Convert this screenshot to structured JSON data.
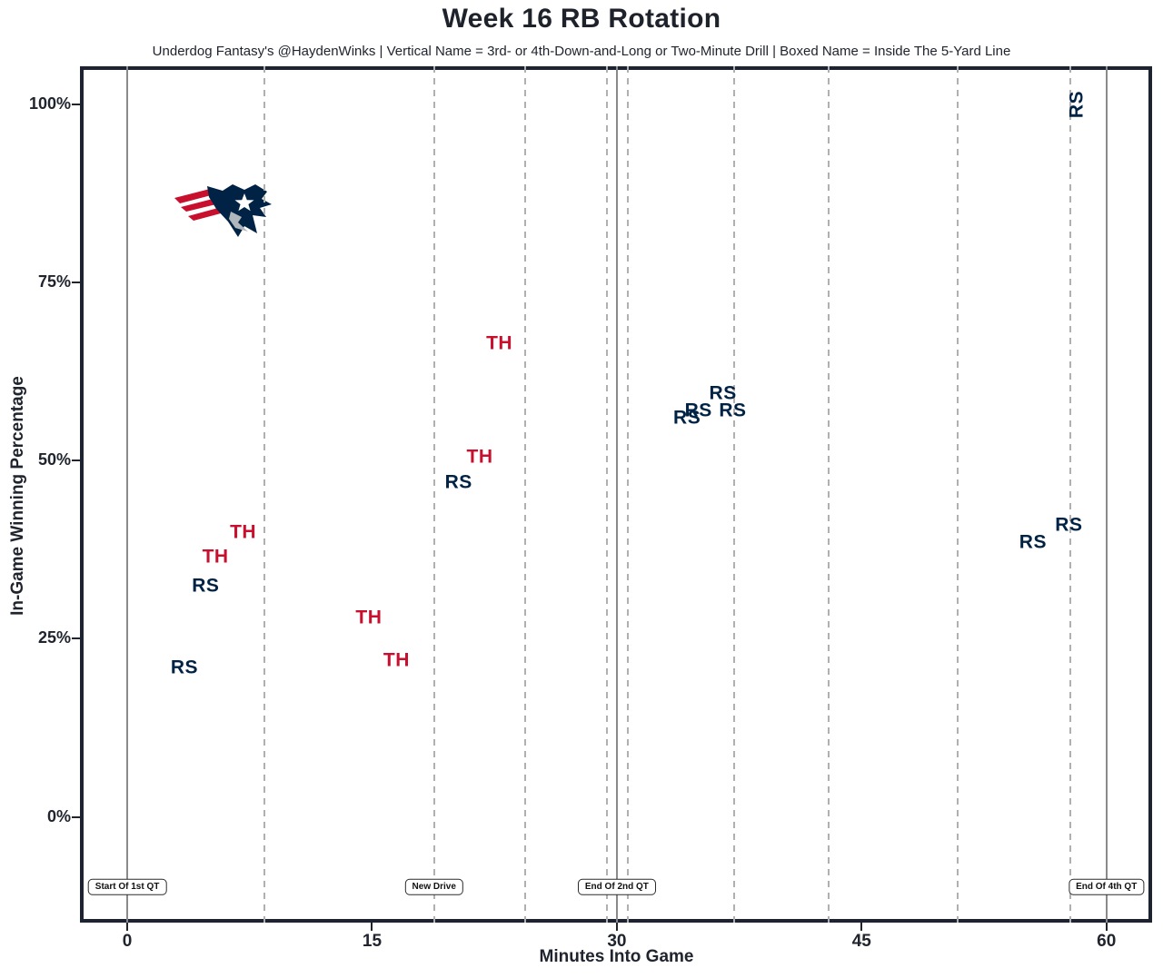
{
  "title": "Week 16 RB Rotation",
  "subtitle": "Underdog Fantasy's @HaydenWinks | Vertical Name = 3rd- or 4th-Down-and-Long or Two-Minute Drill | Boxed Name = Inside The 5-Yard Line",
  "team": {
    "logo": "new-england-patriots-logo",
    "colors": {
      "navy": "#002244",
      "red": "#C8102E",
      "silver": "#B0B7BC"
    }
  },
  "chart_data": {
    "type": "scatter",
    "title": "Week 16 RB Rotation",
    "subtitle": "Underdog Fantasy's @HaydenWinks | Vertical Name = 3rd- or 4th-Down-and-Long or Two-Minute Drill | Boxed Name = Inside The 5-Yard Line",
    "xlabel": "Minutes Into Game",
    "ylabel": "In-Game Winning Percentage",
    "xlim": [
      -2.9,
      62.8
    ],
    "ylim": [
      -14.8,
      105.3
    ],
    "x_ticks": [
      0,
      15,
      30,
      45,
      60
    ],
    "y_ticks": [
      100,
      75,
      50,
      25,
      0
    ],
    "y_tick_suffix": "%",
    "grid": "vertical-only",
    "legend": "none",
    "marker_style": "text-labels",
    "series": [
      {
        "name": "RS",
        "color": "#002244",
        "points": [
          {
            "x": 3.5,
            "y": 21
          },
          {
            "x": 4.8,
            "y": 32.5
          },
          {
            "x": 20.3,
            "y": 47
          },
          {
            "x": 34.3,
            "y": 56
          },
          {
            "x": 35.0,
            "y": 57
          },
          {
            "x": 36.5,
            "y": 59.5
          },
          {
            "x": 37.1,
            "y": 57
          },
          {
            "x": 55.5,
            "y": 38.5
          },
          {
            "x": 57.7,
            "y": 41
          },
          {
            "x": 58.2,
            "y": 100,
            "vertical": true
          }
        ]
      },
      {
        "name": "TH",
        "color": "#C8102E",
        "points": [
          {
            "x": 5.4,
            "y": 36.5
          },
          {
            "x": 7.1,
            "y": 40
          },
          {
            "x": 14.8,
            "y": 28
          },
          {
            "x": 16.5,
            "y": 22
          },
          {
            "x": 21.6,
            "y": 50.5
          },
          {
            "x": 22.8,
            "y": 66.5
          }
        ]
      }
    ],
    "vlines_solid": [
      0,
      30,
      60
    ],
    "vlines_dashed": [
      8.4,
      18.8,
      24.4,
      29.4,
      30.7,
      37.2,
      43.0,
      50.9,
      57.8
    ],
    "annotations": [
      {
        "label": "Start Of 1st QT",
        "x": 0
      },
      {
        "label": "New Drive",
        "x": 18.8
      },
      {
        "label": "End Of 2nd QT",
        "x": 30
      },
      {
        "label": "End Of 4th QT",
        "x": 60
      }
    ],
    "annotation_y_pct": -9.8,
    "colors": {
      "border": "#1d2330",
      "grid_dashed": "#b0b0b0",
      "grid_solid": "#8a8a8a",
      "text": "#20242e"
    }
  }
}
